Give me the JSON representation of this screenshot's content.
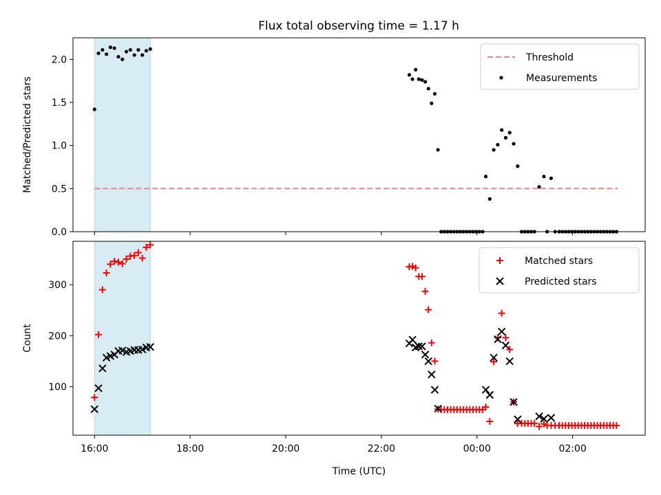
{
  "figure": {
    "title": "Flux total observing time = 1.17 h"
  },
  "chart_data": [
    {
      "type": "scatter",
      "title": "Flux total observing time = 1.17 h",
      "xlabel": "",
      "ylabel": "Matched/Predicted stars",
      "xlim": [
        "15:33",
        "03:31"
      ],
      "ylim": [
        0,
        2.25
      ],
      "x_tick_labels": [
        "16:00",
        "18:00",
        "20:00",
        "22:00",
        "00:00",
        "02:00"
      ],
      "x_ticks_show_labels": false,
      "y_ticks": [
        0.0,
        0.5,
        1.0,
        1.5,
        2.0
      ],
      "y_tick_labels": [
        "0.0",
        "0.5",
        "1.0",
        "1.5",
        "2.0"
      ],
      "legend_position": "top-right",
      "shaded_span": {
        "from": "16:00",
        "to": "17:10",
        "color": "#add8e6"
      },
      "series": [
        {
          "name": "Threshold",
          "style": "dashed-line",
          "color": "#ff7f7f",
          "points": [
            [
              "16:00",
              0.5
            ],
            [
              "02:57",
              0.5
            ]
          ]
        },
        {
          "name": "Measurements",
          "style": "dot",
          "color": "#000000",
          "points": [
            [
              "16:00",
              1.42
            ],
            [
              "16:05",
              2.07
            ],
            [
              "16:10",
              2.11
            ],
            [
              "16:15",
              2.06
            ],
            [
              "16:20",
              2.14
            ],
            [
              "16:25",
              2.13
            ],
            [
              "16:30",
              2.03
            ],
            [
              "16:35",
              2.0
            ],
            [
              "16:40",
              2.09
            ],
            [
              "16:45",
              2.11
            ],
            [
              "16:50",
              2.05
            ],
            [
              "16:55",
              2.11
            ],
            [
              "17:00",
              2.05
            ],
            [
              "17:05",
              2.1
            ],
            [
              "17:10",
              2.12
            ],
            [
              "22:35",
              1.82
            ],
            [
              "22:39",
              1.77
            ],
            [
              "22:43",
              1.88
            ],
            [
              "22:47",
              1.77
            ],
            [
              "22:51",
              1.76
            ],
            [
              "22:55",
              1.74
            ],
            [
              "22:59",
              1.66
            ],
            [
              "23:03",
              1.49
            ],
            [
              "23:07",
              1.6
            ],
            [
              "23:11",
              0.95
            ],
            [
              "23:15",
              0.0
            ],
            [
              "23:19",
              0.0
            ],
            [
              "23:23",
              0.0
            ],
            [
              "23:27",
              0.0
            ],
            [
              "23:31",
              0.0
            ],
            [
              "23:35",
              0.0
            ],
            [
              "23:39",
              0.0
            ],
            [
              "23:43",
              0.0
            ],
            [
              "23:47",
              0.0
            ],
            [
              "23:51",
              0.0
            ],
            [
              "23:55",
              0.0
            ],
            [
              "23:59",
              0.0
            ],
            [
              "00:03",
              0.0
            ],
            [
              "00:07",
              0.0
            ],
            [
              "00:11",
              0.64
            ],
            [
              "00:16",
              0.38
            ],
            [
              "00:21",
              0.95
            ],
            [
              "00:26",
              1.01
            ],
            [
              "00:31",
              1.18
            ],
            [
              "00:36",
              1.09
            ],
            [
              "00:41",
              1.15
            ],
            [
              "00:46",
              1.02
            ],
            [
              "00:51",
              0.76
            ],
            [
              "00:56",
              0.0
            ],
            [
              "01:00",
              0.0
            ],
            [
              "01:04",
              0.0
            ],
            [
              "01:08",
              0.0
            ],
            [
              "01:12",
              0.0
            ],
            [
              "01:18",
              0.52
            ],
            [
              "01:24",
              0.64
            ],
            [
              "01:28",
              0.0
            ],
            [
              "01:33",
              0.62
            ],
            [
              "01:38",
              0.0
            ],
            [
              "01:43",
              0.0
            ],
            [
              "01:47",
              0.0
            ],
            [
              "01:51",
              0.0
            ],
            [
              "01:55",
              0.0
            ],
            [
              "01:59",
              0.0
            ],
            [
              "02:03",
              0.0
            ],
            [
              "02:07",
              0.0
            ],
            [
              "02:11",
              0.0
            ],
            [
              "02:15",
              0.0
            ],
            [
              "02:19",
              0.0
            ],
            [
              "02:23",
              0.0
            ],
            [
              "02:27",
              0.0
            ],
            [
              "02:31",
              0.0
            ],
            [
              "02:35",
              0.0
            ],
            [
              "02:39",
              0.0
            ],
            [
              "02:43",
              0.0
            ],
            [
              "02:47",
              0.0
            ],
            [
              "02:51",
              0.0
            ],
            [
              "02:55",
              0.0
            ]
          ]
        }
      ]
    },
    {
      "type": "scatter",
      "title": "",
      "xlabel": "Time (UTC)",
      "ylabel": "Count",
      "xlim": [
        "15:33",
        "03:31"
      ],
      "ylim": [
        5,
        385
      ],
      "x_tick_labels": [
        "16:00",
        "18:00",
        "20:00",
        "22:00",
        "00:00",
        "02:00"
      ],
      "x_ticks_show_labels": true,
      "y_ticks": [
        100,
        200,
        300
      ],
      "y_tick_labels": [
        "100",
        "200",
        "300"
      ],
      "legend_position": "top-right",
      "shaded_span": {
        "from": "16:00",
        "to": "17:10",
        "color": "#add8e6"
      },
      "series": [
        {
          "name": "Matched stars",
          "style": "plus",
          "color": "#ff0000",
          "points": [
            [
              "16:00",
              79
            ],
            [
              "16:05",
              202
            ],
            [
              "16:10",
              290
            ],
            [
              "16:15",
              323
            ],
            [
              "16:20",
              340
            ],
            [
              "16:25",
              346
            ],
            [
              "16:30",
              344
            ],
            [
              "16:35",
              341
            ],
            [
              "16:40",
              350
            ],
            [
              "16:45",
              356
            ],
            [
              "16:50",
              357
            ],
            [
              "16:55",
              363
            ],
            [
              "17:00",
              352
            ],
            [
              "17:05",
              373
            ],
            [
              "17:10",
              378
            ],
            [
              "22:35",
              335
            ],
            [
              "22:39",
              336
            ],
            [
              "22:43",
              333
            ],
            [
              "22:47",
              316
            ],
            [
              "22:51",
              316
            ],
            [
              "22:55",
              287
            ],
            [
              "22:59",
              251
            ],
            [
              "23:03",
              186
            ],
            [
              "23:07",
              150
            ],
            [
              "23:11",
              56
            ],
            [
              "23:15",
              55
            ],
            [
              "23:19",
              55
            ],
            [
              "23:23",
              55
            ],
            [
              "23:27",
              55
            ],
            [
              "23:31",
              55
            ],
            [
              "23:35",
              55
            ],
            [
              "23:39",
              55
            ],
            [
              "23:43",
              55
            ],
            [
              "23:47",
              55
            ],
            [
              "23:51",
              55
            ],
            [
              "23:55",
              55
            ],
            [
              "23:59",
              55
            ],
            [
              "00:03",
              55
            ],
            [
              "00:07",
              55
            ],
            [
              "00:11",
              60
            ],
            [
              "00:16",
              32
            ],
            [
              "00:21",
              149
            ],
            [
              "00:26",
              196
            ],
            [
              "00:31",
              244
            ],
            [
              "00:36",
              196
            ],
            [
              "00:41",
              173
            ],
            [
              "00:46",
              70
            ],
            [
              "00:51",
              28
            ],
            [
              "00:56",
              28
            ],
            [
              "01:00",
              28
            ],
            [
              "01:04",
              28
            ],
            [
              "01:08",
              28
            ],
            [
              "01:12",
              28
            ],
            [
              "01:18",
              22
            ],
            [
              "01:24",
              27
            ],
            [
              "01:28",
              24
            ],
            [
              "01:33",
              24
            ],
            [
              "01:38",
              24
            ],
            [
              "01:43",
              24
            ],
            [
              "01:47",
              24
            ],
            [
              "01:51",
              24
            ],
            [
              "01:55",
              24
            ],
            [
              "01:59",
              24
            ],
            [
              "02:03",
              24
            ],
            [
              "02:07",
              24
            ],
            [
              "02:11",
              24
            ],
            [
              "02:15",
              24
            ],
            [
              "02:19",
              24
            ],
            [
              "02:23",
              24
            ],
            [
              "02:27",
              24
            ],
            [
              "02:31",
              24
            ],
            [
              "02:35",
              24
            ],
            [
              "02:39",
              24
            ],
            [
              "02:43",
              24
            ],
            [
              "02:47",
              24
            ],
            [
              "02:51",
              24
            ],
            [
              "02:55",
              24
            ]
          ]
        },
        {
          "name": "Predicted stars",
          "style": "x",
          "color": "#000000",
          "points": [
            [
              "16:00",
              56
            ],
            [
              "16:05",
              97
            ],
            [
              "16:10",
              136
            ],
            [
              "16:15",
              157
            ],
            [
              "16:20",
              160
            ],
            [
              "16:25",
              163
            ],
            [
              "16:30",
              170
            ],
            [
              "16:35",
              171
            ],
            [
              "16:40",
              168
            ],
            [
              "16:45",
              170
            ],
            [
              "16:50",
              172
            ],
            [
              "16:55",
              172
            ],
            [
              "17:00",
              173
            ],
            [
              "17:05",
              177
            ],
            [
              "17:10",
              178
            ],
            [
              "22:35",
              185
            ],
            [
              "22:39",
              192
            ],
            [
              "22:43",
              177
            ],
            [
              "22:47",
              179
            ],
            [
              "22:51",
              179
            ],
            [
              "22:55",
              163
            ],
            [
              "22:59",
              150
            ],
            [
              "23:03",
              124
            ],
            [
              "23:07",
              94
            ],
            [
              "23:11",
              57
            ],
            [
              "00:11",
              94
            ],
            [
              "00:16",
              84
            ],
            [
              "00:21",
              157
            ],
            [
              "00:26",
              193
            ],
            [
              "00:31",
              208
            ],
            [
              "00:36",
              181
            ],
            [
              "00:41",
              150
            ],
            [
              "00:46",
              70
            ],
            [
              "00:51",
              36
            ],
            [
              "01:18",
              42
            ],
            [
              "01:24",
              37
            ],
            [
              "01:33",
              39
            ]
          ]
        }
      ]
    }
  ]
}
